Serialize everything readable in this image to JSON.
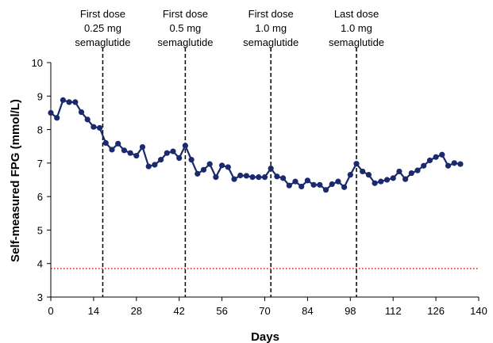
{
  "chart_data": {
    "type": "line",
    "xlabel": "Days",
    "ylabel": "Self-measured FPG (mmol/L)",
    "xlim": [
      0,
      140
    ],
    "ylim": [
      3,
      10
    ],
    "xticks": [
      0,
      14,
      28,
      42,
      56,
      70,
      84,
      98,
      112,
      126,
      140
    ],
    "yticks": [
      3,
      4,
      5,
      6,
      7,
      8,
      9,
      10
    ],
    "grid": false,
    "legend": "none",
    "series": [
      {
        "color": "#1a2a6c",
        "x": [
          0,
          2,
          4,
          6,
          8,
          10,
          12,
          14,
          16,
          18,
          20,
          22,
          24,
          26,
          28,
          30,
          32,
          34,
          36,
          38,
          40,
          42,
          44,
          46,
          48,
          50,
          52,
          54,
          56,
          58,
          60,
          62,
          64,
          66,
          68,
          70,
          72,
          74,
          76,
          78,
          80,
          82,
          84,
          86,
          88,
          90,
          92,
          94,
          96,
          98,
          100,
          102,
          104,
          106,
          108,
          110,
          112,
          114,
          116,
          118,
          120,
          122,
          124,
          126,
          128,
          130,
          132,
          134
        ],
        "y": [
          8.5,
          8.35,
          8.88,
          8.82,
          8.82,
          8.52,
          8.3,
          8.08,
          8.05,
          7.6,
          7.4,
          7.58,
          7.38,
          7.3,
          7.22,
          7.48,
          6.9,
          6.95,
          7.1,
          7.3,
          7.35,
          7.15,
          7.52,
          7.1,
          6.68,
          6.8,
          6.97,
          6.58,
          6.93,
          6.88,
          6.52,
          6.63,
          6.62,
          6.58,
          6.58,
          6.58,
          6.84,
          6.6,
          6.55,
          6.33,
          6.45,
          6.3,
          6.48,
          6.35,
          6.35,
          6.2,
          6.37,
          6.45,
          6.28,
          6.65,
          6.98,
          6.75,
          6.65,
          6.4,
          6.45,
          6.5,
          6.55,
          6.75,
          6.52,
          6.7,
          6.78,
          6.92,
          7.08,
          7.18,
          7.25,
          6.92,
          7.0,
          6.97
        ]
      }
    ],
    "reference_line": {
      "y": 3.85,
      "color": "#e0202a",
      "style": "dotted"
    },
    "annotations": [
      {
        "x": 17,
        "lines": [
          "First dose",
          "0.25 mg",
          "semaglutide"
        ]
      },
      {
        "x": 44,
        "lines": [
          "First dose",
          "0.5 mg",
          "semaglutide"
        ]
      },
      {
        "x": 72,
        "lines": [
          "First dose",
          "1.0 mg",
          "semaglutide"
        ]
      },
      {
        "x": 100,
        "lines": [
          "Last dose",
          "1.0 mg",
          "semaglutide"
        ]
      }
    ]
  }
}
